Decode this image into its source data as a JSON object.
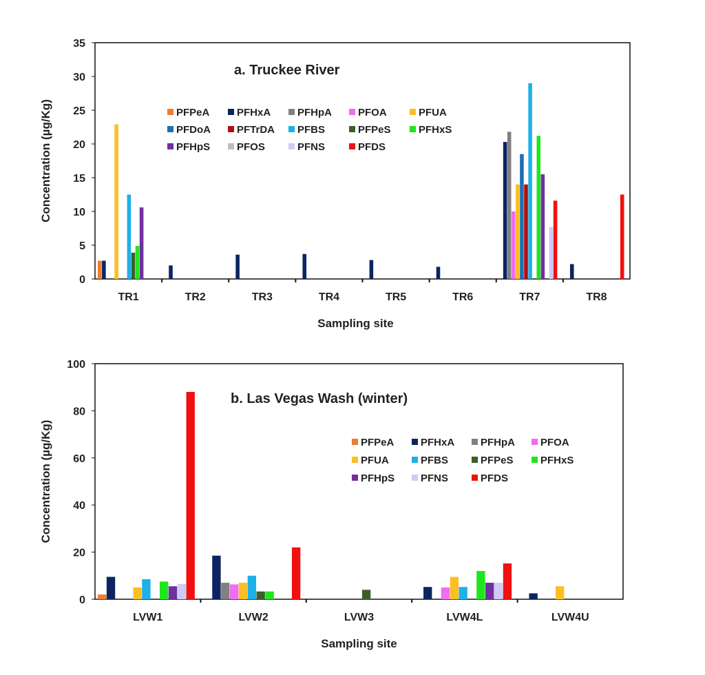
{
  "chart_data": [
    {
      "type": "bar",
      "title": "a. Truckee River",
      "xlabel": "Sampling site",
      "ylabel": "Concentration (µg/Kg)",
      "ylim": [
        0,
        35
      ],
      "yticks": [
        0,
        5,
        10,
        15,
        20,
        25,
        30,
        35
      ],
      "legend": "top-left, 5 columns",
      "categories": [
        "TR1",
        "TR2",
        "TR3",
        "TR4",
        "TR5",
        "TR6",
        "TR7",
        "TR8"
      ],
      "series": [
        {
          "name": "PFPeA",
          "color": "#ed7d31",
          "values": [
            2.7,
            0,
            0,
            0,
            0,
            0,
            0,
            0
          ]
        },
        {
          "name": "PFHxA",
          "color": "#0c2461",
          "values": [
            2.7,
            2.0,
            3.6,
            3.7,
            2.8,
            1.8,
            20.3,
            2.2
          ]
        },
        {
          "name": "PFHpA",
          "color": "#808080",
          "values": [
            0,
            0,
            0,
            0,
            0,
            0,
            21.8,
            0
          ]
        },
        {
          "name": "PFOA",
          "color": "#f06cf0",
          "values": [
            0,
            0,
            0,
            0,
            0,
            0,
            10.0,
            0
          ]
        },
        {
          "name": "PFUA",
          "color": "#fbbf24",
          "values": [
            22.9,
            0,
            0,
            0,
            0,
            0,
            14.0,
            0
          ]
        },
        {
          "name": "PFDoA",
          "color": "#1f6fb4",
          "values": [
            0,
            0,
            0,
            0,
            0,
            0,
            18.5,
            0
          ]
        },
        {
          "name": "PFTrDA",
          "color": "#b01010",
          "values": [
            0,
            0,
            0,
            0,
            0,
            0,
            14.0,
            0
          ]
        },
        {
          "name": "PFBS",
          "color": "#1eb0e8",
          "values": [
            12.5,
            0,
            0,
            0,
            0,
            0,
            29.0,
            0
          ]
        },
        {
          "name": "PFPeS",
          "color": "#3a5f2a",
          "values": [
            3.9,
            0,
            0,
            0,
            0,
            0,
            0,
            0
          ]
        },
        {
          "name": "PFHxS",
          "color": "#1ee61e",
          "values": [
            4.9,
            0,
            0,
            0,
            0,
            0,
            21.2,
            0
          ]
        },
        {
          "name": "PFHpS",
          "color": "#7030a0",
          "values": [
            10.6,
            0,
            0,
            0,
            0,
            0,
            15.5,
            0
          ]
        },
        {
          "name": "PFOS",
          "color": "#bfbfbf",
          "values": [
            0,
            0,
            0,
            0,
            0,
            0,
            0,
            0
          ]
        },
        {
          "name": "PFNS",
          "color": "#ccccf5",
          "values": [
            0,
            0,
            0,
            0,
            0,
            0,
            7.7,
            0
          ]
        },
        {
          "name": "PFDS",
          "color": "#f01010",
          "values": [
            0,
            0,
            0,
            0,
            0,
            0,
            11.6,
            12.5
          ]
        }
      ]
    },
    {
      "type": "bar",
      "title": "b. Las Vegas Wash (winter)",
      "xlabel": "Sampling site",
      "ylabel": "Concentration (µg/Kg)",
      "ylim": [
        0,
        100
      ],
      "yticks": [
        0,
        20,
        40,
        60,
        80,
        100
      ],
      "legend": "right, 4 columns",
      "categories": [
        "LVW1",
        "LVW2",
        "LVW3",
        "LVW4L",
        "LVW4U"
      ],
      "series": [
        {
          "name": "PFPeA",
          "color": "#ed7d31",
          "values": [
            2,
            0,
            0,
            0,
            0
          ]
        },
        {
          "name": "PFHxA",
          "color": "#0c2461",
          "values": [
            9.5,
            18.5,
            0,
            5.2,
            2.5
          ]
        },
        {
          "name": "PFHpA",
          "color": "#808080",
          "values": [
            0,
            7,
            0,
            0,
            0
          ]
        },
        {
          "name": "PFOA",
          "color": "#f06cf0",
          "values": [
            0,
            6.3,
            0,
            5,
            0
          ]
        },
        {
          "name": "PFUA",
          "color": "#fbbf24",
          "values": [
            5,
            7,
            0,
            9.5,
            5.5
          ]
        },
        {
          "name": "PFBS",
          "color": "#1eb0e8",
          "values": [
            8.5,
            10,
            0,
            5.2,
            0
          ]
        },
        {
          "name": "PFPeS",
          "color": "#3a5f2a",
          "values": [
            0,
            3.3,
            4,
            0,
            0
          ]
        },
        {
          "name": "PFHxS",
          "color": "#1ee61e",
          "values": [
            7.5,
            3.3,
            0,
            12,
            0
          ]
        },
        {
          "name": "PFHpS",
          "color": "#7030a0",
          "values": [
            5.5,
            0,
            0,
            7,
            0
          ]
        },
        {
          "name": "PFNS",
          "color": "#ccccf5",
          "values": [
            6.5,
            0,
            0,
            7,
            0
          ]
        },
        {
          "name": "PFDS",
          "color": "#f01010",
          "values": [
            88,
            22,
            0,
            15.2,
            0
          ]
        }
      ]
    }
  ]
}
